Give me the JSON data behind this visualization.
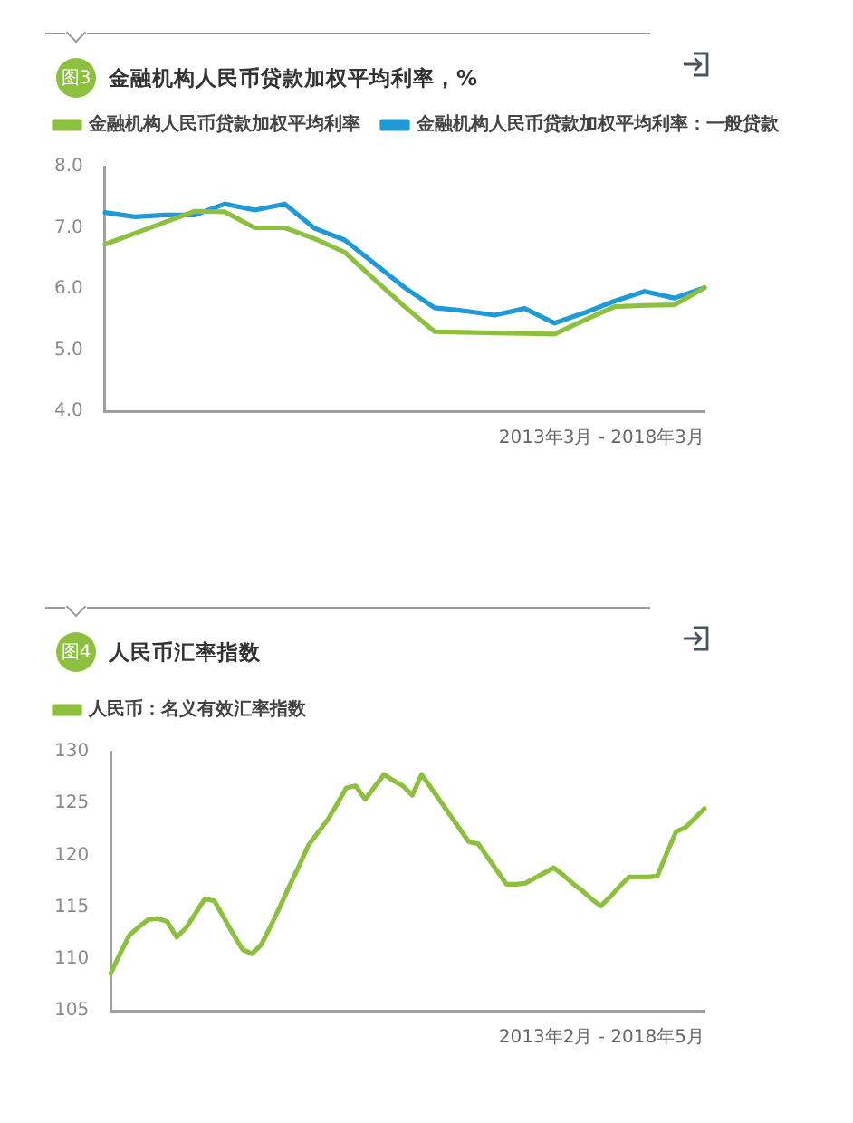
{
  "chart_data": [
    {
      "type": "line",
      "title": "金融机构人民币贷款加权平均利率，%",
      "xlabel": "2013年3月 - 2018年3月",
      "annotations": [
        "图3"
      ],
      "categories": [
        null,
        null,
        null,
        null,
        null,
        null,
        null,
        null,
        null,
        null,
        null,
        null,
        null,
        null,
        null,
        null,
        null,
        null,
        null,
        null,
        null
      ],
      "series": [
        {
          "name": "金融机构人民币贷款加权平均利率",
          "color": "#8dc03f",
          "values": [
            6.73,
            6.91,
            7.09,
            7.27,
            7.26,
            7.0,
            7.0,
            6.82,
            6.6,
            6.15,
            5.71,
            5.3,
            5.29,
            5.28,
            5.27,
            5.26,
            5.49,
            5.71,
            5.73,
            5.74,
            6.02
          ]
        },
        {
          "name": "金融机构人民币贷款加权平均利率：一般贷款",
          "color": "#1f9ad6",
          "values": [
            7.25,
            7.18,
            7.21,
            7.21,
            7.39,
            7.29,
            7.39,
            6.99,
            6.8,
            6.41,
            6.02,
            5.69,
            5.64,
            5.57,
            5.68,
            5.44,
            5.61,
            5.8,
            5.96,
            5.85,
            6.02
          ]
        }
      ],
      "ylim": [
        4,
        8
      ],
      "yticks": [
        {
          "value": 4,
          "label": "4.0"
        },
        {
          "value": 5,
          "label": "5.0"
        },
        {
          "value": 6,
          "label": "6.0"
        },
        {
          "value": 7,
          "label": "7.0"
        },
        {
          "value": 8,
          "label": "8.0"
        }
      ],
      "legend": "top left",
      "tick_labels": "y"
    },
    {
      "type": "line",
      "title": "人民币汇率指数",
      "xlabel": "2013年2月 - 2018年5月",
      "annotations": [
        "图4"
      ],
      "categories": [
        null,
        null,
        null,
        null,
        null,
        null,
        null,
        null,
        null,
        null,
        null,
        null,
        null,
        null,
        null,
        null,
        null,
        null,
        null,
        null,
        null,
        null,
        null,
        null,
        null,
        null,
        null,
        null,
        null,
        null,
        null,
        null,
        null,
        null,
        null,
        null,
        null,
        null,
        null,
        null,
        null,
        null,
        null,
        null,
        null,
        null,
        null,
        null,
        null,
        null,
        null,
        null,
        null,
        null,
        null,
        null,
        null,
        null,
        null,
        null,
        null,
        null,
        null,
        null
      ],
      "series": [
        {
          "name": "人民币：名义有效汇率指数",
          "color": "#8dc03f",
          "values": [
            108.6,
            110.5,
            112.3,
            113.1,
            113.8,
            113.9,
            113.6,
            112.1,
            113.0,
            114.4,
            115.8,
            115.6,
            114.0,
            112.4,
            110.9,
            110.5,
            111.4,
            113.2,
            115.1,
            117.1,
            119.0,
            121.0,
            122.2,
            123.4,
            124.9,
            126.5,
            126.7,
            125.4,
            126.6,
            127.8,
            127.2,
            126.7,
            125.8,
            127.8,
            126.5,
            125.2,
            123.9,
            122.6,
            121.3,
            121.1,
            119.8,
            118.5,
            117.2,
            117.2,
            117.3,
            117.8,
            118.3,
            118.8,
            118.1,
            117.3,
            116.6,
            115.8,
            115.1,
            116.0,
            117.0,
            117.9,
            117.9,
            117.9,
            118.0,
            120.2,
            122.3,
            122.7,
            123.6,
            124.5
          ]
        }
      ],
      "ylim": [
        105,
        130
      ],
      "yticks": [
        105,
        110,
        115,
        120,
        125,
        130
      ],
      "legend": "top left",
      "tick_labels": "y"
    }
  ]
}
